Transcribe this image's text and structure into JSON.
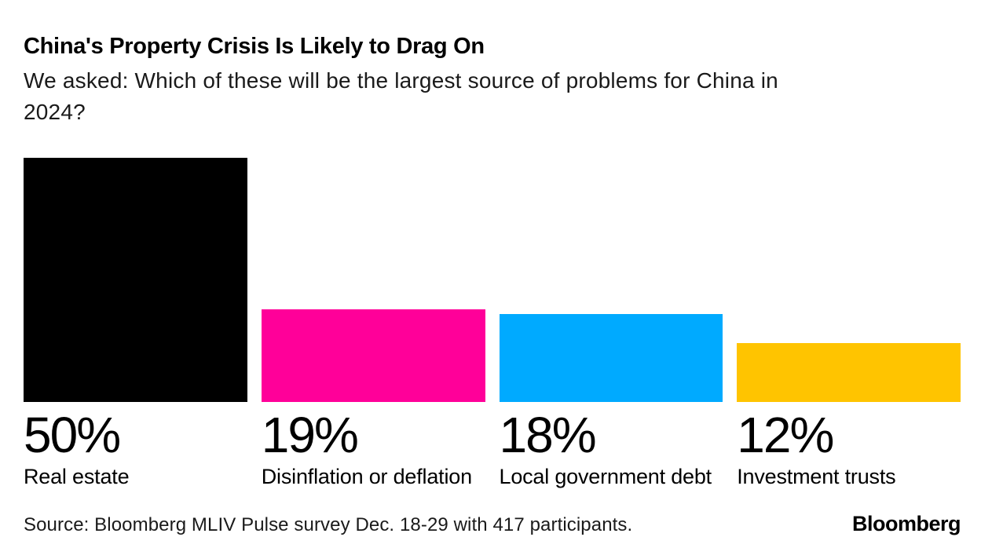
{
  "chart_data": {
    "type": "bar",
    "title": "China's Property Crisis Is Likely to Drag On",
    "subtitle": "We asked: Which of these will be the largest source of problems for China in 2024?",
    "subtitle_lines": [
      "We asked: Which of these will be the largest source of problems for China in",
      "2024?"
    ],
    "categories": [
      "Real estate",
      "Disinflation or deflation",
      "Local government debt",
      "Investment trusts"
    ],
    "values": [
      50,
      19,
      18,
      12
    ],
    "value_labels": [
      "50%",
      "19%",
      "18%",
      "12%"
    ],
    "colors": [
      "#000000",
      "#FF0099",
      "#00AAFF",
      "#FFC400"
    ],
    "unit": "%",
    "ylim": [
      0,
      50
    ],
    "orientation": "vertical",
    "grid": false,
    "legend": "none",
    "axes_shown": false
  },
  "footer": {
    "source": "Source: Bloomberg MLIV Pulse survey Dec. 18-29 with 417 participants.",
    "logo": "Bloomberg"
  }
}
